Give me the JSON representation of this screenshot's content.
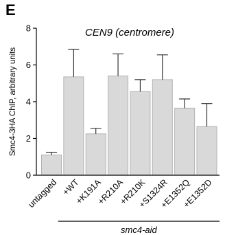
{
  "panel_label": "E",
  "chart_data": {
    "type": "bar",
    "title": "CEN9 (centromere)",
    "ylabel": "Smc4-3HA ChIP, arbitrary units",
    "xlabel": "",
    "ylim": [
      0,
      8
    ],
    "yticks": [
      "0",
      "2",
      "4",
      "6",
      "8"
    ],
    "categories": [
      "untagged",
      "+WT",
      "+K191A",
      "+R210A",
      "+R210K",
      "+S1324R",
      "+E1352Q",
      "+E1352D"
    ],
    "values": [
      1.1,
      5.35,
      2.25,
      5.4,
      4.55,
      5.2,
      3.65,
      2.65
    ],
    "errors": [
      0.15,
      1.5,
      0.3,
      1.2,
      0.65,
      1.35,
      0.5,
      1.25
    ],
    "group_label": "smc4-aid",
    "grid": false,
    "legend": "none",
    "bar_color": "#d9d9d9",
    "bar_edge_color": "#b3b3b3"
  }
}
